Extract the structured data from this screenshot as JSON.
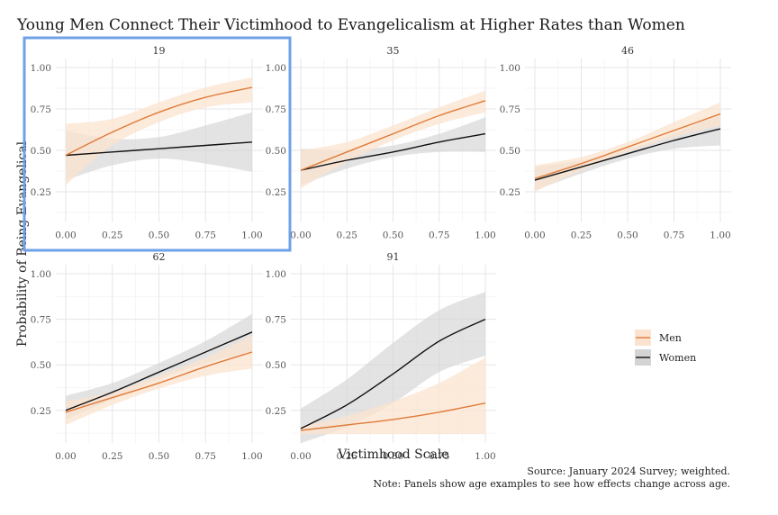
{
  "chart_data": {
    "type": "line",
    "title": "Young Men Connect Their Victimhood to Evangelicalism at Higher Rates than Women",
    "xlabel": "Victimhood Scale",
    "ylabel": "Probability of Being Evangelical",
    "xlim": [
      0,
      1
    ],
    "ylim": [
      0.1,
      1.0
    ],
    "x_ticks": [
      "0.00",
      "0.25",
      "0.50",
      "0.75",
      "1.00"
    ],
    "y_ticks": [
      "0.25",
      "0.50",
      "0.75",
      "1.00"
    ],
    "x": [
      0,
      0.25,
      0.5,
      0.75,
      1.0
    ],
    "legend": {
      "placement": "right",
      "entries": [
        "Men",
        "Women"
      ]
    },
    "colors": {
      "Men": "#e07b39",
      "Women": "#111111",
      "Men_band": "#fbe3cf",
      "Women_band": "#d4d4d4"
    },
    "caption": [
      "Source: January 2024 Survey; weighted.",
      "Note: Panels show age examples to see how effects change across age."
    ],
    "panels": [
      {
        "label": "19",
        "series": [
          {
            "name": "Men",
            "values": [
              0.47,
              0.61,
              0.73,
              0.82,
              0.88
            ],
            "lower": [
              0.29,
              0.53,
              0.67,
              0.76,
              0.79
            ],
            "upper": [
              0.66,
              0.69,
              0.79,
              0.88,
              0.94
            ]
          },
          {
            "name": "Women",
            "values": [
              0.47,
              0.49,
              0.51,
              0.53,
              0.55
            ],
            "lower": [
              0.32,
              0.41,
              0.45,
              0.42,
              0.37
            ],
            "upper": [
              0.62,
              0.57,
              0.58,
              0.65,
              0.73
            ]
          }
        ]
      },
      {
        "label": "35",
        "series": [
          {
            "name": "Men",
            "values": [
              0.38,
              0.49,
              0.6,
              0.71,
              0.8
            ],
            "lower": [
              0.27,
              0.43,
              0.56,
              0.66,
              0.73
            ],
            "upper": [
              0.5,
              0.55,
              0.65,
              0.76,
              0.86
            ]
          },
          {
            "name": "Women",
            "values": [
              0.38,
              0.44,
              0.49,
              0.55,
              0.6
            ],
            "lower": [
              0.29,
              0.39,
              0.46,
              0.49,
              0.49
            ],
            "upper": [
              0.51,
              0.5,
              0.53,
              0.6,
              0.7
            ]
          }
        ]
      },
      {
        "label": "46",
        "series": [
          {
            "name": "Men",
            "values": [
              0.33,
              0.42,
              0.52,
              0.62,
              0.72
            ],
            "lower": [
              0.25,
              0.38,
              0.49,
              0.58,
              0.65
            ],
            "upper": [
              0.41,
              0.46,
              0.55,
              0.67,
              0.79
            ]
          },
          {
            "name": "Women",
            "values": [
              0.32,
              0.4,
              0.48,
              0.56,
              0.63
            ],
            "lower": [
              0.26,
              0.36,
              0.45,
              0.51,
              0.53
            ],
            "upper": [
              0.4,
              0.44,
              0.51,
              0.6,
              0.73
            ]
          }
        ]
      },
      {
        "label": "62",
        "series": [
          {
            "name": "Men",
            "values": [
              0.24,
              0.32,
              0.4,
              0.49,
              0.57
            ],
            "lower": [
              0.17,
              0.28,
              0.37,
              0.44,
              0.48
            ],
            "upper": [
              0.3,
              0.35,
              0.44,
              0.54,
              0.66
            ]
          },
          {
            "name": "Women",
            "values": [
              0.25,
              0.35,
              0.46,
              0.57,
              0.68
            ],
            "lower": [
              0.2,
              0.31,
              0.42,
              0.51,
              0.57
            ],
            "upper": [
              0.33,
              0.4,
              0.51,
              0.63,
              0.78
            ]
          }
        ]
      },
      {
        "label": "91",
        "series": [
          {
            "name": "Men",
            "values": [
              0.14,
              0.17,
              0.2,
              0.24,
              0.29
            ],
            "lower": [
              0.12,
              0.12,
              0.12,
              0.12,
              0.12
            ],
            "upper": [
              0.16,
              0.22,
              0.3,
              0.4,
              0.54
            ]
          },
          {
            "name": "Women",
            "values": [
              0.15,
              0.28,
              0.45,
              0.63,
              0.75
            ],
            "lower": [
              0.07,
              0.16,
              0.29,
              0.46,
              0.55
            ],
            "upper": [
              0.26,
              0.42,
              0.62,
              0.8,
              0.9
            ]
          }
        ]
      }
    ]
  }
}
